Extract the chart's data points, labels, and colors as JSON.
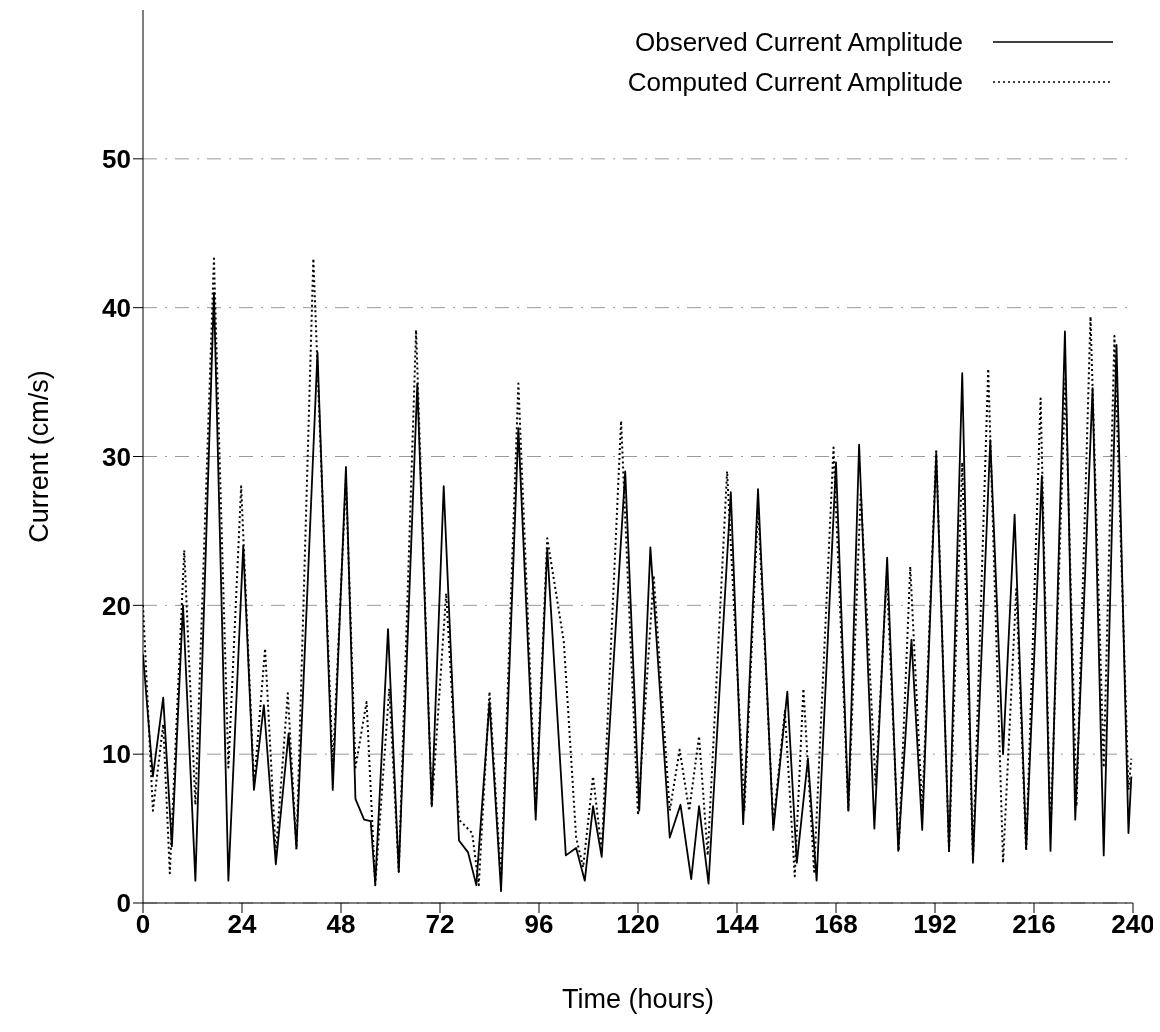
{
  "chart_data": {
    "type": "line",
    "xlabel": "Time (hours)",
    "ylabel": "Current (cm/s)",
    "xlim": [
      0,
      240
    ],
    "xticks": [
      0,
      24,
      48,
      72,
      96,
      120,
      144,
      168,
      192,
      216,
      240
    ],
    "ylim": [
      0,
      60
    ],
    "yticks": [
      0,
      10,
      20,
      30,
      40,
      50
    ],
    "grid": "y",
    "legend": "top right",
    "marker": "none",
    "series": [
      {
        "name": "Observed Current Amplitude",
        "color": "#000000",
        "line_style": "solid",
        "x": [
          0,
          2.4,
          4.9,
          7.0,
          9.7,
          12.7,
          17.2,
          20.7,
          24.3,
          26.9,
          29.3,
          32.2,
          35.3,
          37.2,
          42.3,
          46.0,
          49.2,
          51.5,
          53.6,
          55.2,
          56.3,
          59.4,
          62.0,
          66.5,
          70.0,
          72.9,
          76.6,
          78.8,
          80.8,
          84.0,
          86.8,
          91.0,
          95.2,
          98.0,
          102.5,
          105.0,
          107.1,
          109.1,
          111.2,
          116.9,
          120.3,
          123.0,
          127.7,
          130.3,
          132.9,
          134.8,
          137.1,
          142.5,
          145.5,
          149.1,
          152.8,
          156.2,
          158.5,
          161.2,
          163.3,
          168.0,
          171.0,
          173.6,
          177.3,
          180.4,
          183.1,
          186.3,
          188.9,
          192.3,
          195.4,
          198.6,
          201.2,
          205.4,
          208.5,
          211.3,
          214.1,
          217.9,
          220.0,
          223.5,
          226.0,
          230.2,
          232.9,
          236.0,
          238.9,
          239.6
        ],
        "values": [
          16.7,
          8.5,
          13.8,
          3.8,
          20.0,
          1.5,
          41.0,
          1.5,
          24.0,
          7.6,
          13.3,
          2.6,
          11.4,
          3.7,
          37.0,
          7.6,
          29.3,
          7.0,
          5.6,
          5.5,
          1.3,
          18.4,
          2.1,
          34.9,
          6.5,
          28.0,
          4.2,
          3.4,
          1.2,
          13.5,
          0.8,
          31.9,
          5.6,
          23.8,
          3.2,
          3.7,
          1.5,
          6.5,
          3.1,
          29.0,
          6.2,
          23.9,
          4.4,
          6.6,
          1.6,
          6.5,
          1.3,
          27.6,
          5.3,
          27.8,
          4.9,
          14.2,
          2.7,
          9.7,
          1.5,
          29.6,
          6.2,
          30.8,
          5.0,
          23.2,
          3.5,
          17.7,
          4.9,
          30.2,
          3.5,
          35.6,
          2.7,
          31.1,
          10.0,
          26.1,
          3.7,
          28.7,
          3.5,
          38.4,
          5.6,
          34.6,
          3.2,
          37.5,
          4.7,
          8.5
        ]
      },
      {
        "name": "Computed Current Amplitude",
        "color": "#000000",
        "line_style": "dotted",
        "x": [
          0,
          2.4,
          4.9,
          6.5,
          10.0,
          12.7,
          17.2,
          20.7,
          23.8,
          26.9,
          29.6,
          32.2,
          35.1,
          37.2,
          41.3,
          46.0,
          49.2,
          51.5,
          54.2,
          56.3,
          59.7,
          62.0,
          66.2,
          70.0,
          73.5,
          76.6,
          79.8,
          81.4,
          84.0,
          86.8,
          91.0,
          95.2,
          98.0,
          102.0,
          105.0,
          106.7,
          109.1,
          111.2,
          115.9,
          120.0,
          123.8,
          127.7,
          130.1,
          132.4,
          134.8,
          136.9,
          141.6,
          145.8,
          149.1,
          152.8,
          155.6,
          158.0,
          160.1,
          162.7,
          167.4,
          171.0,
          174.0,
          177.6,
          180.3,
          183.2,
          186.0,
          188.9,
          192.3,
          195.4,
          198.6,
          201.2,
          204.9,
          208.5,
          211.7,
          214.1,
          217.6,
          220.0,
          223.6,
          226.3,
          229.7,
          232.9,
          235.5,
          238.9,
          239.6
        ],
        "values": [
          20.0,
          6.2,
          12.0,
          2.0,
          23.7,
          6.6,
          43.3,
          9.1,
          28.0,
          7.9,
          17.1,
          3.3,
          14.1,
          3.6,
          43.3,
          9.1,
          28.5,
          9.1,
          13.5,
          1.2,
          14.4,
          2.1,
          38.5,
          6.5,
          20.8,
          5.6,
          4.7,
          1.2,
          14.2,
          1.5,
          34.9,
          6.2,
          24.5,
          17.6,
          4.4,
          2.4,
          8.5,
          3.5,
          32.4,
          5.9,
          22.0,
          6.2,
          10.3,
          6.2,
          11.2,
          3.2,
          29.0,
          6.2,
          26.7,
          5.3,
          12.9,
          1.8,
          14.4,
          2.1,
          30.6,
          6.2,
          27.6,
          7.9,
          22.0,
          3.5,
          22.6,
          6.2,
          30.5,
          3.5,
          29.6,
          2.9,
          35.9,
          2.7,
          21.1,
          3.5,
          33.9,
          4.7,
          35.2,
          6.5,
          39.4,
          9.1,
          38.1,
          7.6,
          9.7
        ]
      }
    ]
  }
}
